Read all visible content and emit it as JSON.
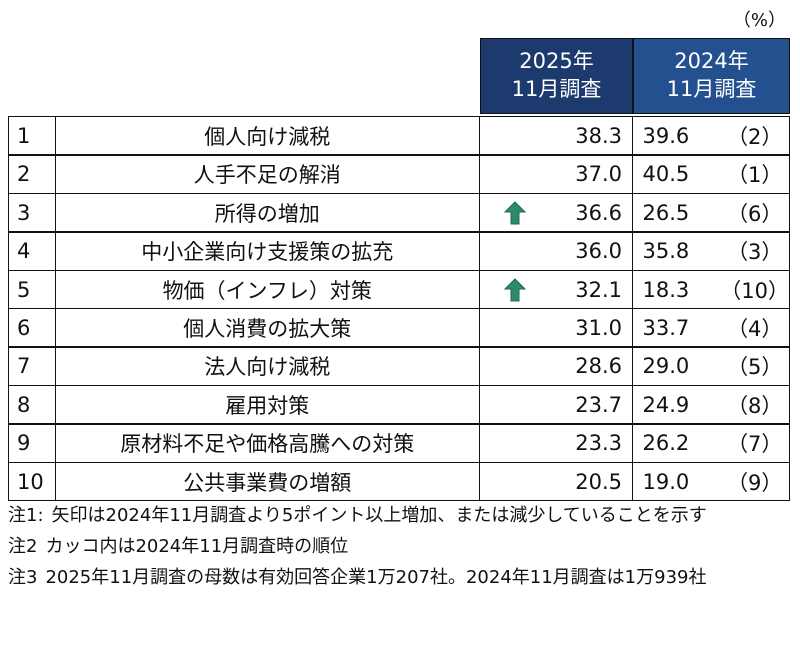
{
  "unit": "（%）",
  "header": {
    "col2025": [
      "2025年",
      "11月調査"
    ],
    "col2024": [
      "2024年",
      "11月調査"
    ]
  },
  "table": {
    "rows": [
      {
        "rank": "1",
        "item": "個人向け減税",
        "v2025": "38.3",
        "v2024": "39.6",
        "rank2024": "（2）"
      },
      {
        "rank": "2",
        "item": "人手不足の解消",
        "v2025": "37.0",
        "v2024": "40.5",
        "rank2024": "（1）"
      },
      {
        "rank": "3",
        "item": "所得の増加",
        "up": true,
        "v2025": "36.6",
        "v2024": "26.5",
        "rank2024": "（6）"
      },
      {
        "rank": "4",
        "item": "中小企業向け支援策の拡充",
        "v2025": "36.0",
        "v2024": "35.8",
        "rank2024": "（3）"
      },
      {
        "rank": "5",
        "item": "物価（インフレ）対策",
        "up": true,
        "v2025": "32.1",
        "v2024": "18.3",
        "rank2024": "（10）"
      },
      {
        "rank": "6",
        "item": "個人消費の拡大策",
        "v2025": "31.0",
        "v2024": "33.7",
        "rank2024": "（4）"
      },
      {
        "rank": "7",
        "item": "法人向け減税",
        "v2025": "28.6",
        "v2024": "29.0",
        "rank2024": "（5）"
      },
      {
        "rank": "8",
        "item": "雇用対策",
        "v2025": "23.7",
        "v2024": "24.9",
        "rank2024": "（8）"
      },
      {
        "rank": "9",
        "item": "原材料不足や価格高騰への対策",
        "v2025": "23.3",
        "v2024": "26.2",
        "rank2024": "（7）"
      },
      {
        "rank": "10",
        "item": "公共事業費の増額",
        "v2025": "20.5",
        "v2024": "19.0",
        "rank2024": "（9）"
      }
    ]
  },
  "notes": [
    {
      "label": "注1:",
      "text": "矢印は2024年11月調査より5ポイント以上増加、または減少していることを示す"
    },
    {
      "label": "注2",
      "text": "カッコ内は2024年11月調査時の順位"
    },
    {
      "label": "注3",
      "text": "2025年11月調査の母数は有効回答企業1万207社。2024年11月調査は1万939社"
    }
  ]
}
